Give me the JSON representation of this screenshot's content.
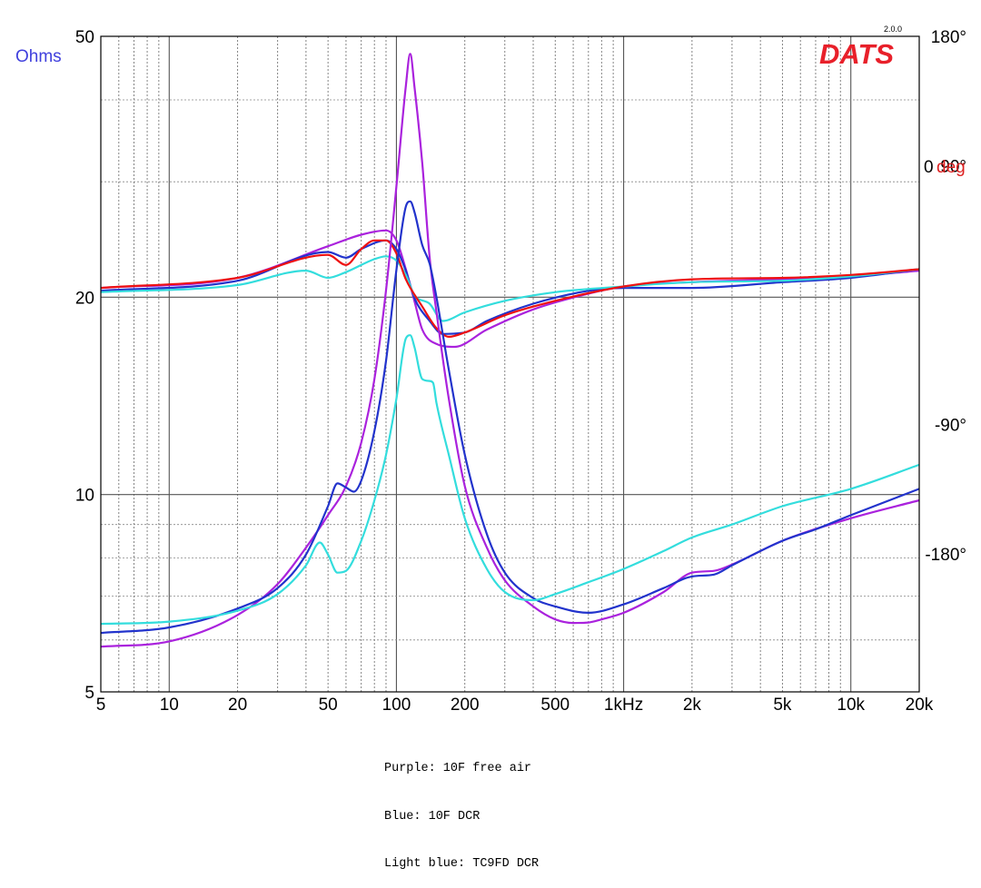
{
  "brand": {
    "name": "DATS",
    "version": "2.0.0"
  },
  "legend": [
    "Purple: 10F free air",
    "Blue: 10F DCR",
    "Light blue: TC9FD DCR"
  ],
  "chart_data": {
    "type": "line",
    "xscale": "log",
    "xlim": [
      5,
      20000
    ],
    "xticks": [
      {
        "v": 5,
        "label": "5"
      },
      {
        "v": 10,
        "label": "10"
      },
      {
        "v": 20,
        "label": "20"
      },
      {
        "v": 50,
        "label": "50"
      },
      {
        "v": 100,
        "label": "100"
      },
      {
        "v": 200,
        "label": "200"
      },
      {
        "v": 500,
        "label": "500"
      },
      {
        "v": 1000,
        "label": "1kHz"
      },
      {
        "v": 2000,
        "label": "2k"
      },
      {
        "v": 5000,
        "label": "5k"
      },
      {
        "v": 10000,
        "label": "10k"
      },
      {
        "v": 20000,
        "label": "20k"
      }
    ],
    "yleft": {
      "label": "Ohms",
      "scale": "log",
      "lim": [
        5,
        50
      ],
      "ticks": [
        {
          "v": 5,
          "label": "5"
        },
        {
          "v": 10,
          "label": "10"
        },
        {
          "v": 20,
          "label": "20"
        },
        {
          "v": 50,
          "label": "50"
        }
      ],
      "color": "#4040dd"
    },
    "yright": {
      "label_value": "0",
      "label_unit": "deg",
      "lim": [
        -276,
        180
      ],
      "ticks": [
        {
          "v": 180,
          "label": "180°"
        },
        {
          "v": 90,
          "label": "90°"
        },
        {
          "v": -90,
          "label": "-90°"
        },
        {
          "v": -180,
          "label": "-180°"
        }
      ],
      "zero_label": "0",
      "color": "#dd2020"
    },
    "grid": true,
    "series": [
      {
        "color": "#aa22dd",
        "impedance": [
          [
            5,
            5.86
          ],
          [
            10,
            5.97
          ],
          [
            20,
            6.55
          ],
          [
            30,
            7.3
          ],
          [
            40,
            8.3
          ],
          [
            50,
            9.3
          ],
          [
            60,
            10.3
          ],
          [
            70,
            12
          ],
          [
            80,
            15
          ],
          [
            90,
            20.5
          ],
          [
            100,
            29.5
          ],
          [
            110,
            42
          ],
          [
            115,
            47
          ],
          [
            120,
            42
          ],
          [
            130,
            32
          ],
          [
            140,
            23
          ],
          [
            150,
            19
          ],
          [
            170,
            14
          ],
          [
            200,
            10.3
          ],
          [
            250,
            8.3
          ],
          [
            300,
            7.4
          ],
          [
            400,
            6.75
          ],
          [
            500,
            6.45
          ],
          [
            600,
            6.37
          ],
          [
            700,
            6.38
          ],
          [
            800,
            6.45
          ],
          [
            1000,
            6.6
          ],
          [
            1500,
            7.1
          ],
          [
            2000,
            7.6
          ],
          [
            2500,
            7.65
          ],
          [
            3000,
            7.82
          ],
          [
            5000,
            8.5
          ],
          [
            10000,
            9.2
          ],
          [
            20000,
            9.8
          ]
        ],
        "phase": [
          [
            5,
            5
          ],
          [
            20,
            12
          ],
          [
            50,
            34
          ],
          [
            70,
            42
          ],
          [
            90,
            45
          ],
          [
            100,
            38
          ],
          [
            110,
            18
          ],
          [
            120,
            -4
          ],
          [
            130,
            -24
          ],
          [
            150,
            -34
          ],
          [
            180,
            -36
          ],
          [
            250,
            -24
          ],
          [
            400,
            -10
          ],
          [
            700,
            1
          ],
          [
            1000,
            6
          ],
          [
            2000,
            9
          ],
          [
            5000,
            11
          ],
          [
            10000,
            13
          ],
          [
            20000,
            17
          ]
        ]
      },
      {
        "color": "#2233cc",
        "impedance": [
          [
            5,
            6.15
          ],
          [
            10,
            6.27
          ],
          [
            20,
            6.7
          ],
          [
            30,
            7.2
          ],
          [
            40,
            8.1
          ],
          [
            50,
            9.6
          ],
          [
            55,
            10.4
          ],
          [
            60,
            10.25
          ],
          [
            65,
            10.1
          ],
          [
            70,
            10.5
          ],
          [
            80,
            12.5
          ],
          [
            90,
            16
          ],
          [
            100,
            22
          ],
          [
            110,
            27.5
          ],
          [
            115,
            28
          ],
          [
            120,
            27
          ],
          [
            130,
            24
          ],
          [
            140,
            22.5
          ],
          [
            150,
            20
          ],
          [
            170,
            15.5
          ],
          [
            200,
            11.5
          ],
          [
            250,
            8.7
          ],
          [
            300,
            7.6
          ],
          [
            400,
            6.95
          ],
          [
            500,
            6.75
          ],
          [
            700,
            6.6
          ],
          [
            1000,
            6.8
          ],
          [
            1500,
            7.2
          ],
          [
            2000,
            7.5
          ],
          [
            2500,
            7.55
          ],
          [
            3000,
            7.8
          ],
          [
            5000,
            8.5
          ],
          [
            7000,
            8.85
          ],
          [
            10000,
            9.3
          ],
          [
            20000,
            10.2
          ]
        ],
        "phase": [
          [
            5,
            3
          ],
          [
            20,
            10
          ],
          [
            50,
            30
          ],
          [
            60,
            26
          ],
          [
            70,
            32
          ],
          [
            90,
            38
          ],
          [
            100,
            32
          ],
          [
            110,
            17
          ],
          [
            120,
            -2
          ],
          [
            140,
            -18
          ],
          [
            160,
            -27
          ],
          [
            200,
            -26
          ],
          [
            250,
            -18
          ],
          [
            400,
            -6
          ],
          [
            700,
            3
          ],
          [
            1000,
            5
          ],
          [
            2000,
            5
          ],
          [
            5000,
            9
          ],
          [
            10000,
            12
          ],
          [
            20000,
            18
          ]
        ]
      },
      {
        "color": "#33dddd",
        "impedance": [
          [
            5,
            6.35
          ],
          [
            10,
            6.4
          ],
          [
            20,
            6.65
          ],
          [
            30,
            7.05
          ],
          [
            40,
            7.8
          ],
          [
            46,
            8.45
          ],
          [
            50,
            8.1
          ],
          [
            55,
            7.6
          ],
          [
            60,
            7.65
          ],
          [
            70,
            8.5
          ],
          [
            80,
            9.8
          ],
          [
            90,
            11.5
          ],
          [
            100,
            14
          ],
          [
            110,
            17.3
          ],
          [
            115,
            17.5
          ],
          [
            120,
            16.8
          ],
          [
            130,
            15
          ],
          [
            140,
            14.9
          ],
          [
            145,
            14.8
          ],
          [
            150,
            13.8
          ],
          [
            170,
            11.5
          ],
          [
            200,
            9.2
          ],
          [
            250,
            7.7
          ],
          [
            300,
            7.1
          ],
          [
            400,
            6.9
          ],
          [
            500,
            7.05
          ],
          [
            700,
            7.35
          ],
          [
            1000,
            7.7
          ],
          [
            1500,
            8.2
          ],
          [
            2000,
            8.6
          ],
          [
            3000,
            9
          ],
          [
            5000,
            9.6
          ],
          [
            10000,
            10.2
          ],
          [
            20000,
            11.1
          ]
        ],
        "phase": [
          [
            5,
            2
          ],
          [
            20,
            7
          ],
          [
            40,
            17
          ],
          [
            50,
            12
          ],
          [
            60,
            16
          ],
          [
            80,
            25
          ],
          [
            90,
            27
          ],
          [
            100,
            24
          ],
          [
            110,
            14
          ],
          [
            120,
            0
          ],
          [
            140,
            -6
          ],
          [
            160,
            -18
          ],
          [
            200,
            -12
          ],
          [
            300,
            -4
          ],
          [
            500,
            2
          ],
          [
            1000,
            6
          ],
          [
            2000,
            9
          ],
          [
            5000,
            10
          ],
          [
            10000,
            13
          ],
          [
            20000,
            18
          ]
        ]
      },
      {
        "color": "#ee1111",
        "impedance": [],
        "phase": [
          [
            5,
            5
          ],
          [
            20,
            12
          ],
          [
            50,
            28
          ],
          [
            60,
            21
          ],
          [
            70,
            32
          ],
          [
            80,
            38
          ],
          [
            90,
            38
          ],
          [
            100,
            29
          ],
          [
            110,
            11
          ],
          [
            130,
            -8
          ],
          [
            150,
            -23
          ],
          [
            170,
            -29
          ],
          [
            200,
            -26
          ],
          [
            300,
            -14
          ],
          [
            500,
            -4
          ],
          [
            1000,
            6
          ],
          [
            2000,
            11
          ],
          [
            5000,
            12
          ],
          [
            10000,
            14
          ],
          [
            20000,
            18
          ]
        ]
      }
    ]
  }
}
